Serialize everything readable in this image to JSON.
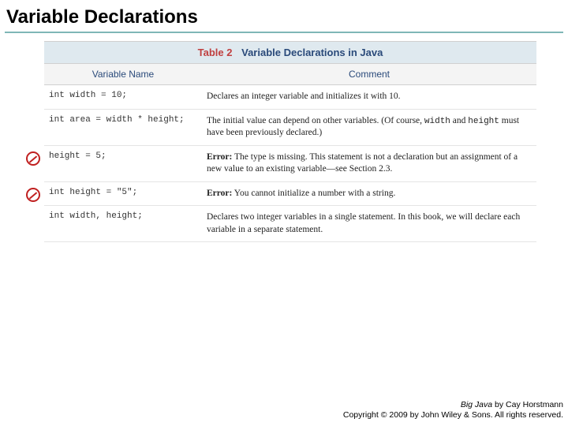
{
  "title": "Variable Declarations",
  "table": {
    "caption_label": "Table 2",
    "caption_text": "Variable Declarations in Java",
    "headers": {
      "variable": "Variable Name",
      "comment": "Comment"
    },
    "rows": [
      {
        "is_error": false,
        "variable_code": "int width = 10;",
        "comment_html": "Declares an integer variable and initializes it with 10."
      },
      {
        "is_error": false,
        "variable_code": "int area = width * height;",
        "comment_html": "The initial value can depend on other variables. (Of course, <span class=\"code\">width</span> and <span class=\"code\">height</span> must have been previously declared.)"
      },
      {
        "is_error": true,
        "variable_code": "height = 5;",
        "comment_html": "<span class=\"err-label\">Error:</span> The type is missing. This statement is not a declaration but an assignment of a new value to an existing variable—see Section 2.3."
      },
      {
        "is_error": true,
        "variable_code": "int height = \"5\";",
        "comment_html": "<span class=\"err-label\">Error:</span> You cannot initialize a number with a string."
      },
      {
        "is_error": false,
        "variable_code": "int width, height;",
        "comment_html": "Declares two integer variables in a single statement. In this book, we will declare each variable in a separate statement."
      }
    ]
  },
  "footer": {
    "book_title": "Big Java",
    "byline": " by Cay Horstmann",
    "copyright": "Copyright © 2009 by John Wiley & Sons. All rights reserved."
  },
  "colors": {
    "title_rule": "#7fb7b7",
    "caption_bg": "#dfe9ef",
    "caption_label": "#c04040",
    "caption_text": "#2a4a7a",
    "header_text": "#2a4a7a",
    "row_border": "#e4e4e4",
    "error_red": "#c02020"
  }
}
